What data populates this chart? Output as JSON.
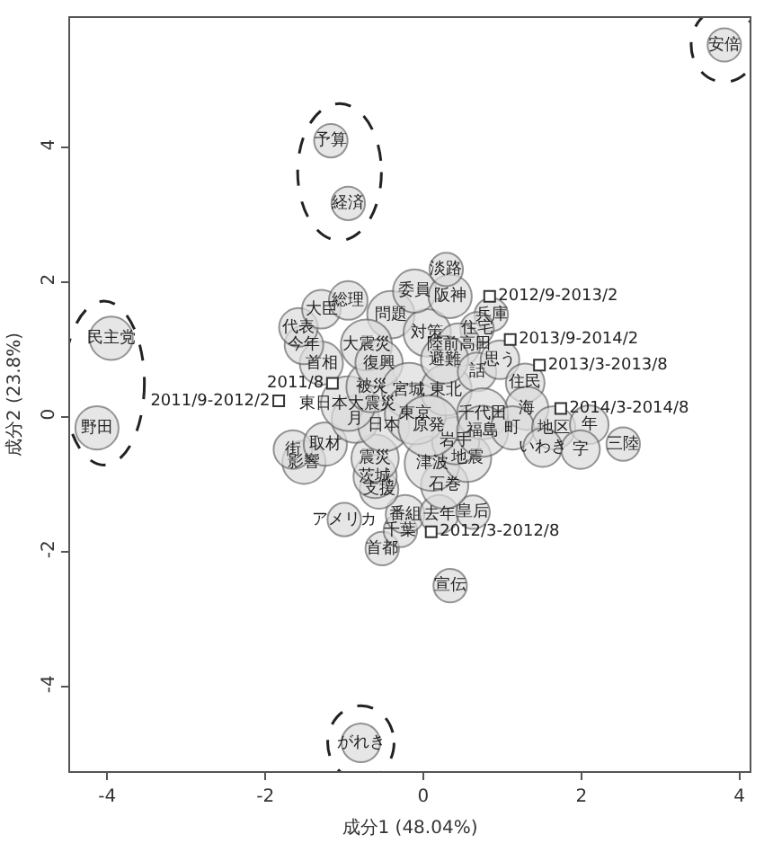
{
  "chart_data": {
    "type": "bubble",
    "xlabel": "成分1 (48.04%)",
    "ylabel": "成分2 (23.8%)",
    "xlim": [
      -4.47,
      4.13
    ],
    "ylim": [
      -5.25,
      5.92
    ],
    "xticks": [
      -4,
      -2,
      0,
      2,
      4
    ],
    "yticks": [
      -4,
      -2,
      0,
      2,
      4
    ],
    "grid": false,
    "marker": "circle",
    "series": [
      {
        "color": "#dcdcdc",
        "x": [
          0.34,
          -1.0,
          -0.52,
          -0.29,
          -0.23,
          0.2,
          0.63,
          0.27,
          0.11,
          0.56,
          0.41,
          -0.56,
          -0.61,
          -0.61,
          -1.51,
          -1.65,
          -1.24,
          -0.86,
          -0.5,
          -0.95,
          -0.65,
          -1.29,
          -1.51,
          -1.58,
          -1.29,
          -0.95,
          -0.41,
          -0.72,
          -0.56,
          -0.18,
          -0.1,
          0.29,
          0.07,
          0.05,
          -0.11,
          0.34,
          0.29,
          0.86,
          0.68,
          0.45,
          0.27,
          0.68,
          0.97,
          1.29,
          1.31,
          0.75,
          0.75,
          1.13,
          1.65,
          2.1,
          2.53,
          1.99,
          1.51
        ],
        "values": [
          -2.5,
          -1.52,
          -1.95,
          -1.68,
          -1.44,
          -1.44,
          -1.41,
          -1.01,
          -0.69,
          -0.61,
          -0.35,
          -1.07,
          -0.88,
          -0.61,
          -0.67,
          -0.48,
          -0.4,
          -0.03,
          -0.13,
          0.2,
          0.45,
          0.8,
          1.07,
          1.33,
          1.6,
          1.73,
          1.52,
          1.07,
          0.8,
          0.4,
          0.05,
          0.4,
          -0.13,
          1.25,
          1.87,
          1.79,
          2.19,
          1.52,
          1.31,
          1.07,
          0.85,
          0.67,
          0.85,
          0.51,
          0.13,
          0.05,
          -0.21,
          -0.16,
          -0.16,
          -0.11,
          -0.4,
          -0.48,
          -0.45
        ],
        "sizes": [
          0.3,
          0.3,
          0.3,
          0.3,
          0.4,
          0.4,
          0.3,
          0.6,
          0.8,
          0.6,
          0.6,
          0.4,
          0.5,
          0.6,
          0.5,
          0.4,
          0.5,
          0.6,
          0.7,
          0.8,
          0.7,
          0.5,
          0.4,
          0.4,
          0.4,
          0.4,
          0.6,
          0.7,
          0.6,
          0.8,
          1,
          0.7,
          1,
          0.6,
          0.5,
          0.5,
          0.3,
          0.3,
          0.3,
          0.5,
          0.6,
          0.4,
          0.4,
          0.4,
          0.5,
          0.7,
          0.7,
          0.5,
          0.5,
          0.4,
          0.3,
          0.4,
          0.4
        ],
        "value_labels": [
          "宣伝",
          "アメリカ",
          "首都",
          "千葉",
          "番組",
          "去年",
          "皇后",
          "石巻",
          "津波",
          "地震",
          "岩手",
          "支援",
          "茨城",
          "震災",
          "影響",
          "街",
          "取材",
          "月",
          "日本",
          "東日本大震災",
          "被災",
          "首相",
          "今年",
          "代表",
          "大臣",
          "総理",
          "問題",
          "大震災",
          "復興",
          "宮城",
          "東京",
          "東北",
          "原発",
          "対策",
          "委員",
          "阪神",
          "淡路",
          "兵庫",
          "住宅",
          "陸前高田",
          "避難",
          "話",
          "思う",
          "住民",
          "海",
          "千代田",
          "福島",
          "町",
          "地区",
          "年",
          "三陸",
          "字",
          "いわき"
        ]
      },
      {
        "type": "scatter",
        "marker": "square",
        "color": "#ffffff",
        "x": [
          -1.15,
          -1.83,
          0.1,
          0.84,
          1.1,
          1.47,
          1.74
        ],
        "values": [
          0.5,
          0.24,
          -1.7,
          1.79,
          1.15,
          0.77,
          0.13
        ],
        "value_labels": [
          "2011/8",
          "2011/9-2012/2",
          "2012/3-2012/8",
          "2012/9-2013/2",
          "2013/9-2014/2",
          "2013/3-2013/8",
          "2014/3-2014/8"
        ]
      },
      {
        "color": "#dcdcdc",
        "x": [
          -3.95,
          -4.13
        ],
        "values": [
          1.17,
          -0.16
        ],
        "sizes": [
          0.5,
          0.5
        ],
        "value_labels": [
          "民主党",
          "野田"
        ]
      },
      {
        "color": "#dcdcdc",
        "x": [
          -1.17,
          -0.95
        ],
        "values": [
          4.1,
          3.17
        ],
        "sizes": [
          0.3,
          0.3
        ],
        "value_labels": [
          "予算",
          "経済"
        ]
      },
      {
        "color": "#dcdcdc",
        "x": [
          3.81
        ],
        "values": [
          5.52
        ],
        "sizes": [
          0.3
        ],
        "value_labels": [
          "安倍"
        ]
      },
      {
        "color": "#dcdcdc",
        "x": [
          -0.79
        ],
        "values": [
          -4.83
        ],
        "sizes": [
          0.4
        ],
        "value_labels": [
          "がれき"
        ]
      }
    ]
  }
}
